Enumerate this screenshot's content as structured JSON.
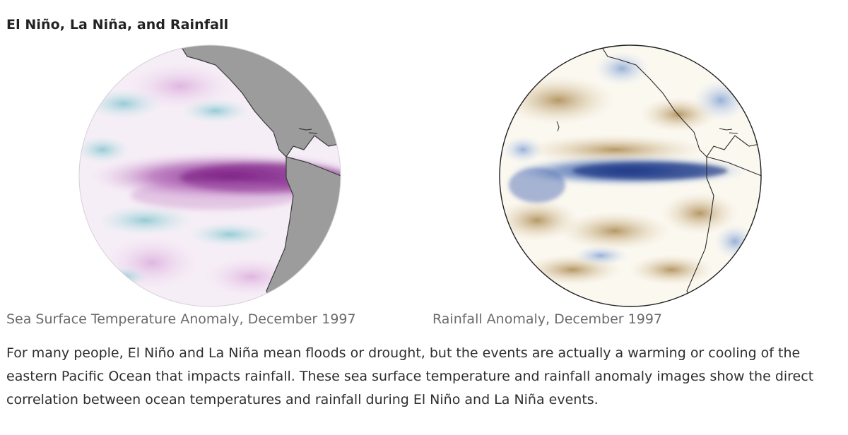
{
  "article": {
    "title": "El Niño, La Niña, and Rainfall",
    "figures": [
      {
        "name": "sst-globe",
        "caption": "Sea Surface Temperature Anomaly, December 1997",
        "colors": {
          "ocean": "#f6eef6",
          "warm": "#8e2e94",
          "cool": "#9ed3db",
          "land": "#9c9c9c",
          "coast": "#3a3a3a"
        }
      },
      {
        "name": "rainfall-globe",
        "caption": "Rainfall Anomaly, December 1997",
        "colors": {
          "ocean": "#fbf8f0",
          "wet": "#1e3e96",
          "dry": "#b4925a",
          "coast": "#2a2a2a"
        }
      }
    ],
    "paragraph": "For many people, El Niño and La Niña mean floods or drought, but the events are actually a warming or cooling of the eastern Pacific Ocean that impacts rainfall. These sea surface temperature and rainfall anomaly images show the direct correlation between ocean temperatures and rainfall during El Niño and La Niña events."
  }
}
